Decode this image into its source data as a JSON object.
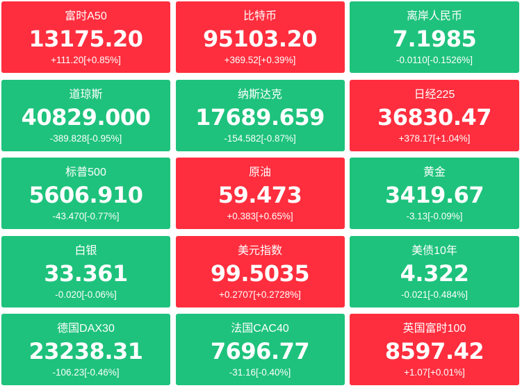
{
  "colors": {
    "up": "#fe2e3e",
    "down": "#1ec27c"
  },
  "quotes": [
    {
      "name": "富时A50",
      "value": "13175.20",
      "change": "+111.20[+0.85%]",
      "trend": "up"
    },
    {
      "name": "比特币",
      "value": "95103.20",
      "change": "+369.52[+0.39%]",
      "trend": "up"
    },
    {
      "name": "离岸人民币",
      "value": "7.1985",
      "change": "-0.0110[-0.1526%]",
      "trend": "down"
    },
    {
      "name": "道琼斯",
      "value": "40829.000",
      "change": "-389.828[-0.95%]",
      "trend": "down"
    },
    {
      "name": "纳斯达克",
      "value": "17689.659",
      "change": "-154.582[-0.87%]",
      "trend": "down"
    },
    {
      "name": "日经225",
      "value": "36830.47",
      "change": "+378.17[+1.04%]",
      "trend": "up"
    },
    {
      "name": "标普500",
      "value": "5606.910",
      "change": "-43.470[-0.77%]",
      "trend": "down"
    },
    {
      "name": "原油",
      "value": "59.473",
      "change": "+0.383[+0.65%]",
      "trend": "up"
    },
    {
      "name": "黄金",
      "value": "3419.67",
      "change": "-3.13[-0.09%]",
      "trend": "down"
    },
    {
      "name": "白银",
      "value": "33.361",
      "change": "-0.020[-0.06%]",
      "trend": "down"
    },
    {
      "name": "美元指数",
      "value": "99.5035",
      "change": "+0.2707[+0.2728%]",
      "trend": "up"
    },
    {
      "name": "美债10年",
      "value": "4.322",
      "change": "-0.021[-0.484%]",
      "trend": "down"
    },
    {
      "name": "德国DAX30",
      "value": "23238.31",
      "change": "-106.23[-0.46%]",
      "trend": "down"
    },
    {
      "name": "法国CAC40",
      "value": "7696.77",
      "change": "-31.16[-0.40%]",
      "trend": "down"
    },
    {
      "name": "英国富时100",
      "value": "8597.42",
      "change": "+1.07[+0.01%]",
      "trend": "up"
    }
  ]
}
